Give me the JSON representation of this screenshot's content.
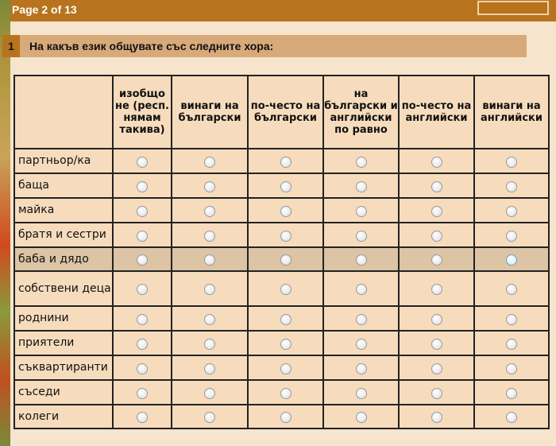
{
  "header": {
    "page_label": "Page 2 of 13"
  },
  "question": {
    "number": "1",
    "text": "На какъв език общувате със следните хора:"
  },
  "columns": [
    "изобщо не (респ. нямам такива)",
    "винаги на български",
    "по-често на български",
    "на български и английски по равно",
    "по-често на английски",
    "винаги на английски"
  ],
  "rows": [
    "партньор/ка",
    "баща",
    "майка",
    "братя и сестри",
    "баба и дядо",
    "собствени деца",
    "роднини",
    "приятели",
    "съквартиранти",
    "съседи",
    "колеги"
  ],
  "highlighted_row": "баба и дядо"
}
